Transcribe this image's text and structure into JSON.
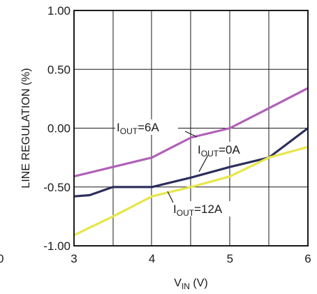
{
  "chart_data": {
    "type": "line",
    "title": "",
    "xlabel": {
      "main": "V",
      "sub": "IN",
      "unit": " (V)"
    },
    "ylabel": "LINE REGULATION (%)",
    "xlim": [
      3,
      6
    ],
    "ylim": [
      -1.0,
      1.0
    ],
    "xticks": [
      3,
      4,
      5,
      6
    ],
    "xtick_labels": [
      "3",
      "4",
      "5",
      "6"
    ],
    "yticks": [
      1.0,
      0.5,
      0.0,
      -0.5,
      -1.0
    ],
    "ytick_labels": [
      "1.00",
      "0.50",
      "0.00",
      "-0.50",
      "-1.00"
    ],
    "extra_tick_labels": [
      {
        "text": "0"
      }
    ],
    "grid": true,
    "series": [
      {
        "name": {
          "main": "I",
          "sub": "OUT",
          "rest": "=6A"
        },
        "color": "#b060b8",
        "x": [
          3.0,
          3.5,
          4.0,
          4.5,
          5.0,
          5.5,
          6.0
        ],
        "y": [
          -0.41,
          -0.33,
          -0.25,
          -0.08,
          0.0,
          0.17,
          0.34
        ]
      },
      {
        "name": {
          "main": "I",
          "sub": "OUT",
          "rest": "=0A"
        },
        "color": "#2c2e5c",
        "x": [
          3.0,
          3.2,
          3.5,
          4.0,
          4.5,
          5.0,
          5.5,
          6.0
        ],
        "y": [
          -0.58,
          -0.57,
          -0.5,
          -0.5,
          -0.42,
          -0.33,
          -0.25,
          0.0
        ]
      },
      {
        "name": {
          "main": "I",
          "sub": "OUT",
          "rest": "=12A"
        },
        "color": "#e6e64a",
        "x": [
          3.0,
          3.5,
          4.0,
          4.5,
          5.0,
          5.5,
          6.0
        ],
        "y": [
          -0.91,
          -0.75,
          -0.58,
          -0.5,
          -0.41,
          -0.25,
          -0.16
        ]
      }
    ]
  }
}
